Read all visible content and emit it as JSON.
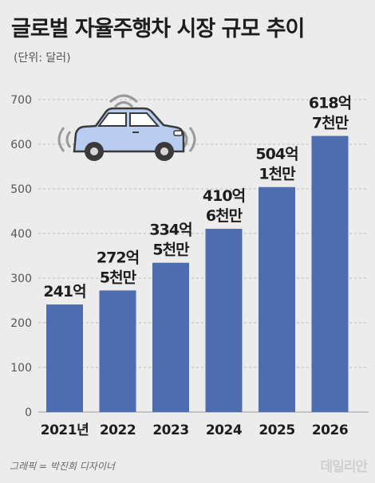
{
  "title": "글로벌 자율주행차 시장 규모 추이",
  "unit": "(단위: 달러)",
  "credit": "그래픽 = 박진희 디자이너",
  "logo": "데일리안",
  "colors": {
    "bar": "#4e6db0",
    "grid": "#bdbdbd",
    "text": "#1d1d1d",
    "axis": "#555555"
  },
  "chart_data": {
    "type": "bar",
    "categories": [
      "2021년",
      "2022",
      "2023",
      "2024",
      "2025",
      "2026"
    ],
    "values": [
      241,
      272.5,
      334.5,
      410.6,
      504.1,
      618.7
    ],
    "value_labels": [
      [
        "241억"
      ],
      [
        "272억",
        "5천만"
      ],
      [
        "334억",
        "5천만"
      ],
      [
        "410억",
        "6천만"
      ],
      [
        "504억",
        "1천만"
      ],
      [
        "618억",
        "7천만"
      ]
    ],
    "yticks": [
      0,
      100,
      200,
      300,
      400,
      500,
      600,
      700
    ],
    "ylim": [
      0,
      700
    ],
    "grid": true
  }
}
